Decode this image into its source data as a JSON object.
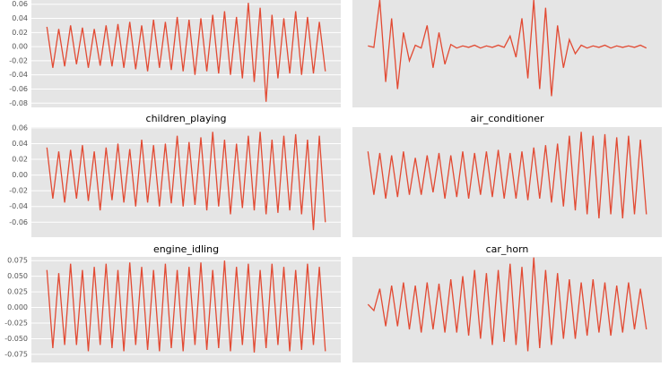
{
  "chart_data": [
    {
      "type": "line",
      "color": "#e24a33",
      "grid": true,
      "ylim": [
        -0.086,
        0.066
      ],
      "yticks": [
        0.06,
        0.04,
        0.02,
        {
          "value": 0,
          "label": "0.00"
        },
        -0.02,
        -0.04,
        -0.06,
        -0.08
      ],
      "values": [
        0.028,
        -0.03,
        0.025,
        -0.028,
        0.03,
        -0.025,
        0.027,
        -0.03,
        0.025,
        -0.027,
        0.03,
        -0.028,
        0.032,
        -0.03,
        0.035,
        -0.032,
        0.03,
        -0.035,
        0.038,
        -0.03,
        0.035,
        -0.033,
        0.042,
        -0.035,
        0.038,
        -0.04,
        0.04,
        -0.035,
        0.045,
        -0.038,
        0.05,
        -0.04,
        0.042,
        -0.045,
        0.062,
        -0.05,
        0.055,
        -0.078,
        0.045,
        -0.045,
        0.04,
        -0.038,
        0.05,
        -0.04,
        0.042,
        -0.038,
        0.035,
        -0.035
      ]
    },
    {
      "type": "line",
      "color": "#e24a33",
      "grid": true,
      "ylim": [
        -0.086,
        0.066
      ],
      "values": [
        0.001,
        -0.001,
        0.066,
        -0.05,
        0.04,
        -0.06,
        0.02,
        -0.02,
        0.002,
        -0.002,
        0.03,
        -0.03,
        0.02,
        -0.025,
        0.003,
        -0.002,
        0.001,
        -0.001,
        0.002,
        -0.002,
        0.001,
        -0.001,
        0.002,
        -0.001,
        0.015,
        -0.015,
        0.04,
        -0.045,
        0.066,
        -0.06,
        0.055,
        -0.07,
        0.03,
        -0.03,
        0.01,
        -0.01,
        0.002,
        -0.002,
        0.001,
        -0.001,
        0.002,
        -0.002,
        0.001,
        -0.001,
        0.001,
        -0.001,
        0.002,
        -0.002
      ]
    },
    {
      "type": "line",
      "color": "#e24a33",
      "grid": true,
      "title": "children_playing",
      "ylim": [
        -0.079,
        0.061
      ],
      "yticks": [
        0.06,
        0.04,
        0.02,
        {
          "value": 0,
          "label": "0.00"
        },
        -0.02,
        -0.04,
        -0.06
      ],
      "values": [
        0.035,
        -0.03,
        0.03,
        -0.035,
        0.032,
        -0.03,
        0.038,
        -0.033,
        0.03,
        -0.045,
        0.035,
        -0.032,
        0.04,
        -0.035,
        0.033,
        -0.04,
        0.045,
        -0.035,
        0.038,
        -0.04,
        0.04,
        -0.036,
        0.05,
        -0.04,
        0.042,
        -0.038,
        0.048,
        -0.045,
        0.055,
        -0.04,
        0.045,
        -0.05,
        0.04,
        -0.042,
        0.05,
        -0.045,
        0.055,
        -0.05,
        0.045,
        -0.048,
        0.05,
        -0.045,
        0.052,
        -0.05,
        0.045,
        -0.07,
        0.05,
        -0.06
      ]
    },
    {
      "type": "line",
      "color": "#e24a33",
      "grid": true,
      "title": "air_conditioner",
      "ylim": [
        -0.079,
        0.061
      ],
      "values": [
        0.03,
        -0.025,
        0.028,
        -0.03,
        0.025,
        -0.028,
        0.03,
        -0.025,
        0.022,
        -0.025,
        0.025,
        -0.022,
        0.028,
        -0.03,
        0.025,
        -0.028,
        0.03,
        -0.03,
        0.028,
        -0.025,
        0.03,
        -0.028,
        0.032,
        -0.03,
        0.028,
        -0.03,
        0.03,
        -0.032,
        0.035,
        -0.03,
        0.038,
        -0.035,
        0.04,
        -0.04,
        0.05,
        -0.045,
        0.055,
        -0.05,
        0.05,
        -0.055,
        0.052,
        -0.05,
        0.048,
        -0.055,
        0.05,
        -0.05,
        0.045,
        -0.05
      ]
    },
    {
      "type": "line",
      "color": "#e24a33",
      "grid": true,
      "title": "engine_idling",
      "ylim": [
        -0.088,
        0.081
      ],
      "yticks": [
        0.075,
        {
          "value": 0.05,
          "label": "0.050"
        },
        0.025,
        {
          "value": 0,
          "label": "0.000"
        },
        -0.025,
        {
          "value": -0.05,
          "label": "-0.050"
        },
        -0.075
      ],
      "values": [
        0.06,
        -0.065,
        0.055,
        -0.06,
        0.07,
        -0.06,
        0.06,
        -0.07,
        0.065,
        -0.06,
        0.07,
        -0.065,
        0.06,
        -0.07,
        0.072,
        -0.06,
        0.065,
        -0.068,
        0.06,
        -0.07,
        0.07,
        -0.065,
        0.06,
        -0.07,
        0.065,
        -0.06,
        0.072,
        -0.068,
        0.06,
        -0.065,
        0.075,
        -0.07,
        0.065,
        -0.06,
        0.07,
        -0.072,
        0.06,
        -0.065,
        0.07,
        -0.06,
        0.065,
        -0.07,
        0.06,
        -0.068,
        0.07,
        -0.06,
        0.065,
        -0.07
      ]
    },
    {
      "type": "line",
      "color": "#e24a33",
      "grid": true,
      "title": "car_horn",
      "ylim": [
        -0.088,
        0.081
      ],
      "values": [
        0.005,
        -0.005,
        0.03,
        -0.03,
        0.035,
        -0.03,
        0.04,
        -0.035,
        0.035,
        -0.04,
        0.04,
        -0.035,
        0.038,
        -0.04,
        0.045,
        -0.04,
        0.05,
        -0.045,
        0.06,
        -0.05,
        0.055,
        -0.06,
        0.06,
        -0.055,
        0.07,
        -0.06,
        0.065,
        -0.07,
        0.08,
        -0.065,
        0.06,
        -0.06,
        0.055,
        -0.05,
        0.045,
        -0.05,
        0.04,
        -0.045,
        0.045,
        -0.04,
        0.04,
        -0.045,
        0.035,
        -0.04,
        0.04,
        -0.035,
        0.03,
        -0.035
      ]
    }
  ]
}
